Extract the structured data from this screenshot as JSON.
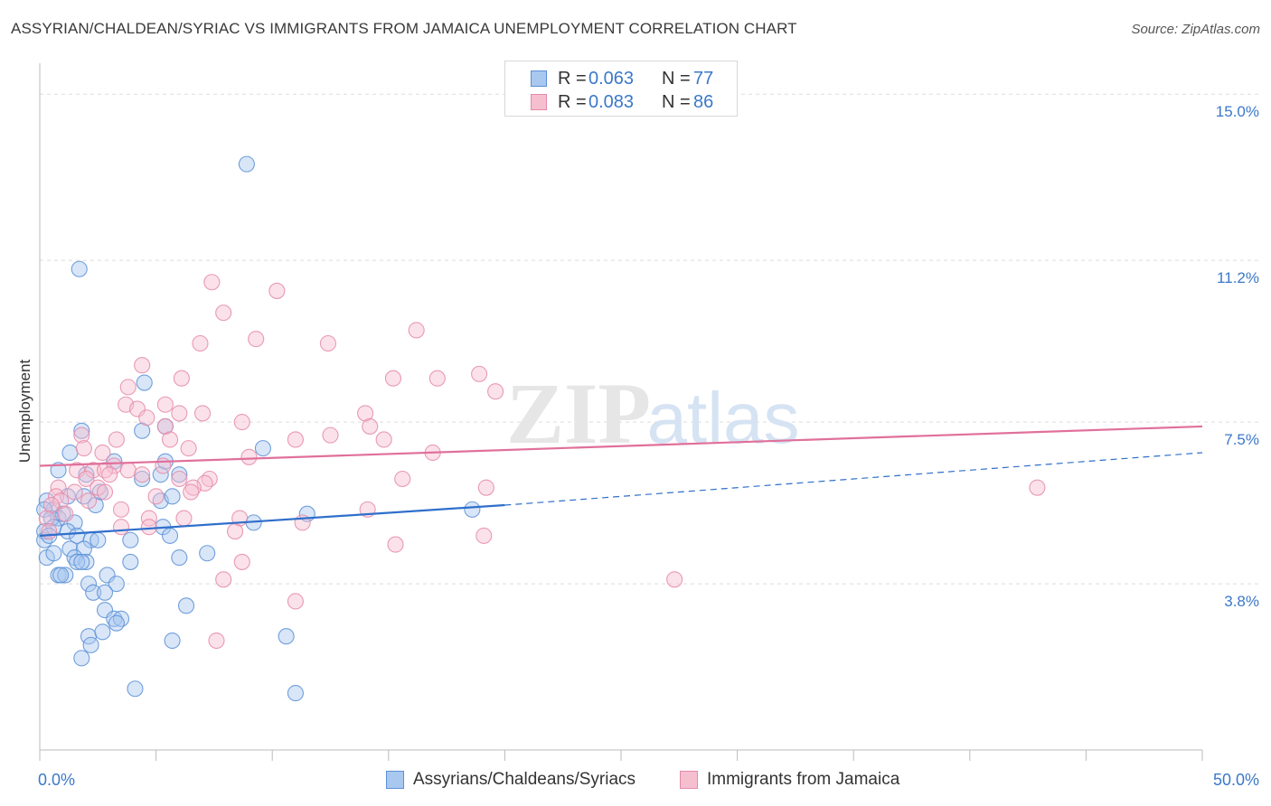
{
  "title": "ASSYRIAN/CHALDEAN/SYRIAC VS IMMIGRANTS FROM JAMAICA UNEMPLOYMENT CORRELATION CHART",
  "source": "Source: ZipAtlas.com",
  "watermark": {
    "zip": "ZIP",
    "atlas": "atlas"
  },
  "colors": {
    "blue_fill": "#a9c8f0",
    "blue_stroke": "#5b8fd6",
    "blue_line": "#2f6fcb",
    "pink_fill": "#f6bfd0",
    "pink_stroke": "#e58aa8",
    "pink_line": "#e0709a",
    "tick_label": "#3b78c9",
    "grid": "#dddddd"
  },
  "legend": {
    "rows": [
      {
        "r_label": "R =",
        "r_value": "0.063",
        "n_label": "N =",
        "n_value": "77",
        "color": "blue"
      },
      {
        "r_label": "R =",
        "r_value": "0.083",
        "n_label": "N =",
        "n_value": "86",
        "color": "pink"
      }
    ]
  },
  "bottom_legend": [
    {
      "label": "Assyrians/Chaldeans/Syriacs",
      "color": "blue"
    },
    {
      "label": "Immigrants from Jamaica",
      "color": "pink"
    }
  ],
  "chart_data": {
    "type": "scatter",
    "title": "ASSYRIAN/CHALDEAN/SYRIAC VS IMMIGRANTS FROM JAMAICA UNEMPLOYMENT CORRELATION CHART",
    "xlabel": "",
    "ylabel": "Unemployment",
    "xlim": [
      0,
      50
    ],
    "ylim": [
      0,
      15.5
    ],
    "x_tick_labels": [
      "0.0%",
      "50.0%"
    ],
    "y_ticks": [
      3.8,
      7.5,
      11.2,
      15.0
    ],
    "y_tick_labels": [
      "3.8%",
      "7.5%",
      "11.2%",
      "15.0%"
    ],
    "grid": true,
    "series": [
      {
        "name": "Assyrians/Chaldeans/Syriacs",
        "color": "blue",
        "trend": {
          "x": [
            0,
            20
          ],
          "y": [
            4.9,
            5.6
          ],
          "dashed_to": [
            50,
            6.8
          ]
        },
        "points": [
          [
            8.9,
            13.4
          ],
          [
            1.7,
            11.0
          ],
          [
            4.5,
            8.4
          ],
          [
            1.8,
            7.3
          ],
          [
            4.4,
            7.3
          ],
          [
            5.4,
            7.4
          ],
          [
            9.6,
            6.9
          ],
          [
            1.3,
            6.8
          ],
          [
            0.8,
            6.4
          ],
          [
            2.0,
            6.3
          ],
          [
            3.2,
            6.6
          ],
          [
            4.4,
            6.2
          ],
          [
            5.2,
            6.3
          ],
          [
            5.4,
            6.6
          ],
          [
            6.0,
            6.3
          ],
          [
            0.3,
            5.7
          ],
          [
            1.2,
            5.8
          ],
          [
            1.9,
            5.8
          ],
          [
            2.4,
            5.6
          ],
          [
            2.6,
            5.9
          ],
          [
            0.6,
            5.5
          ],
          [
            0.2,
            5.5
          ],
          [
            0.8,
            5.3
          ],
          [
            1.0,
            5.4
          ],
          [
            5.2,
            5.7
          ],
          [
            5.7,
            5.8
          ],
          [
            11.5,
            5.4
          ],
          [
            18.6,
            5.5
          ],
          [
            0.5,
            5.3
          ],
          [
            1.5,
            5.2
          ],
          [
            5.3,
            5.1
          ],
          [
            9.2,
            5.2
          ],
          [
            0.2,
            5.0
          ],
          [
            0.6,
            5.1
          ],
          [
            1.2,
            5.0
          ],
          [
            0.2,
            4.8
          ],
          [
            0.4,
            4.9
          ],
          [
            1.6,
            4.9
          ],
          [
            2.2,
            4.8
          ],
          [
            2.5,
            4.8
          ],
          [
            3.9,
            4.8
          ],
          [
            5.6,
            4.9
          ],
          [
            1.3,
            4.6
          ],
          [
            1.9,
            4.6
          ],
          [
            0.3,
            4.4
          ],
          [
            0.6,
            4.5
          ],
          [
            1.5,
            4.4
          ],
          [
            2.0,
            4.3
          ],
          [
            1.6,
            4.3
          ],
          [
            1.8,
            4.3
          ],
          [
            3.9,
            4.3
          ],
          [
            6.0,
            4.4
          ],
          [
            7.2,
            4.5
          ],
          [
            0.8,
            4.0
          ],
          [
            1.1,
            4.0
          ],
          [
            0.9,
            4.0
          ],
          [
            2.9,
            4.0
          ],
          [
            2.1,
            3.8
          ],
          [
            3.3,
            3.8
          ],
          [
            2.3,
            3.6
          ],
          [
            2.8,
            3.6
          ],
          [
            6.3,
            3.3
          ],
          [
            2.8,
            3.2
          ],
          [
            3.2,
            3.0
          ],
          [
            3.5,
            3.0
          ],
          [
            3.3,
            2.9
          ],
          [
            2.1,
            2.6
          ],
          [
            2.7,
            2.7
          ],
          [
            5.7,
            2.5
          ],
          [
            10.6,
            2.6
          ],
          [
            1.8,
            2.1
          ],
          [
            2.2,
            2.4
          ],
          [
            4.1,
            1.4
          ],
          [
            11.0,
            1.3
          ]
        ]
      },
      {
        "name": "Immigrants from Jamaica",
        "color": "pink",
        "trend": {
          "x": [
            0,
            50
          ],
          "y": [
            6.5,
            7.4
          ]
        },
        "points": [
          [
            7.4,
            10.7
          ],
          [
            10.2,
            10.5
          ],
          [
            7.9,
            10.0
          ],
          [
            16.2,
            9.6
          ],
          [
            9.3,
            9.4
          ],
          [
            12.4,
            9.3
          ],
          [
            6.9,
            9.3
          ],
          [
            4.4,
            8.8
          ],
          [
            6.1,
            8.5
          ],
          [
            15.2,
            8.5
          ],
          [
            17.1,
            8.5
          ],
          [
            18.9,
            8.6
          ],
          [
            3.8,
            8.3
          ],
          [
            19.6,
            8.2
          ],
          [
            3.7,
            7.9
          ],
          [
            4.2,
            7.8
          ],
          [
            5.4,
            7.9
          ],
          [
            6.0,
            7.7
          ],
          [
            7.0,
            7.7
          ],
          [
            4.6,
            7.6
          ],
          [
            14.0,
            7.7
          ],
          [
            8.7,
            7.5
          ],
          [
            14.2,
            7.4
          ],
          [
            5.4,
            7.4
          ],
          [
            1.8,
            7.2
          ],
          [
            3.3,
            7.1
          ],
          [
            5.6,
            7.1
          ],
          [
            12.5,
            7.2
          ],
          [
            11.0,
            7.1
          ],
          [
            14.8,
            7.1
          ],
          [
            1.9,
            6.9
          ],
          [
            6.4,
            6.9
          ],
          [
            2.7,
            6.8
          ],
          [
            9.0,
            6.7
          ],
          [
            16.9,
            6.8
          ],
          [
            3.2,
            6.5
          ],
          [
            5.3,
            6.5
          ],
          [
            1.6,
            6.4
          ],
          [
            3.8,
            6.4
          ],
          [
            2.3,
            6.4
          ],
          [
            2.8,
            6.4
          ],
          [
            4.4,
            6.3
          ],
          [
            3.0,
            6.3
          ],
          [
            2.0,
            6.2
          ],
          [
            6.0,
            6.2
          ],
          [
            7.3,
            6.2
          ],
          [
            15.6,
            6.2
          ],
          [
            7.1,
            6.1
          ],
          [
            6.6,
            6.0
          ],
          [
            0.8,
            6.0
          ],
          [
            2.5,
            6.0
          ],
          [
            2.8,
            5.9
          ],
          [
            1.5,
            5.9
          ],
          [
            0.7,
            5.8
          ],
          [
            5.0,
            5.8
          ],
          [
            6.5,
            5.9
          ],
          [
            19.2,
            6.0
          ],
          [
            42.9,
            6.0
          ],
          [
            0.9,
            5.7
          ],
          [
            2.1,
            5.7
          ],
          [
            0.5,
            5.6
          ],
          [
            3.5,
            5.5
          ],
          [
            14.1,
            5.5
          ],
          [
            1.1,
            5.4
          ],
          [
            0.3,
            5.3
          ],
          [
            4.7,
            5.3
          ],
          [
            6.2,
            5.3
          ],
          [
            8.6,
            5.3
          ],
          [
            11.3,
            5.2
          ],
          [
            3.5,
            5.1
          ],
          [
            4.7,
            5.1
          ],
          [
            0.4,
            5.0
          ],
          [
            8.4,
            5.0
          ],
          [
            19.1,
            4.9
          ],
          [
            15.3,
            4.7
          ],
          [
            8.7,
            4.3
          ],
          [
            7.9,
            3.9
          ],
          [
            27.3,
            3.9
          ],
          [
            11.0,
            3.4
          ],
          [
            7.6,
            2.5
          ]
        ]
      }
    ]
  }
}
